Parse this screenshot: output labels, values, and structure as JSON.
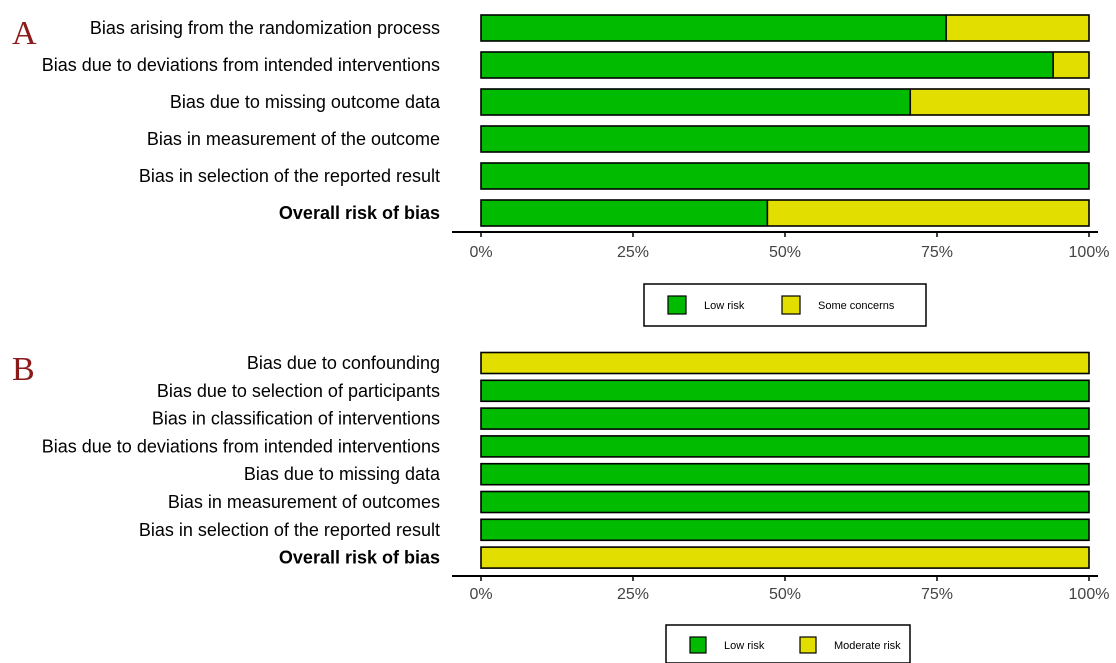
{
  "colors": {
    "low": "#00bb00",
    "concern": "#e2df00",
    "letter": "#8b1a1a"
  },
  "chart_data": [
    {
      "type": "bar",
      "orientation": "horizontal",
      "stacked": true,
      "panel_label": "A",
      "categories": [
        "Bias arising from the randomization process",
        "Bias due to deviations from intended interventions",
        "Bias due to missing outcome data",
        "Bias in measurement of the outcome",
        "Bias in selection of the reported result",
        "Overall risk of bias"
      ],
      "bold_categories": [
        "Overall risk of bias"
      ],
      "series": [
        {
          "name": "Low risk",
          "color": "#00bb00",
          "values": [
            76.5,
            94.1,
            70.6,
            100,
            100,
            47.1
          ]
        },
        {
          "name": "Some concerns",
          "color": "#e2df00",
          "values": [
            23.5,
            5.9,
            29.4,
            0,
            0,
            52.9
          ]
        }
      ],
      "xlim": [
        0,
        100
      ],
      "x_ticks": [
        "0%",
        "25%",
        "50%",
        "75%",
        "100%"
      ],
      "legend_position": "bottom-center",
      "grid": false
    },
    {
      "type": "bar",
      "orientation": "horizontal",
      "stacked": true,
      "panel_label": "B",
      "categories": [
        "Bias due to confounding",
        "Bias due to selection of participants",
        "Bias in classification of interventions",
        "Bias due to deviations from intended interventions",
        "Bias due to missing data",
        "Bias in measurement of outcomes",
        "Bias in selection of the reported result",
        "Overall risk of bias"
      ],
      "bold_categories": [
        "Overall risk of bias"
      ],
      "series": [
        {
          "name": "Low risk",
          "color": "#00bb00",
          "values": [
            0,
            100,
            100,
            100,
            100,
            100,
            100,
            0
          ]
        },
        {
          "name": "Moderate risk",
          "color": "#e2df00",
          "values": [
            100,
            0,
            0,
            0,
            0,
            0,
            0,
            100
          ]
        }
      ],
      "xlim": [
        0,
        100
      ],
      "x_ticks": [
        "0%",
        "25%",
        "50%",
        "75%",
        "100%"
      ],
      "legend_position": "bottom-center",
      "grid": false
    }
  ]
}
